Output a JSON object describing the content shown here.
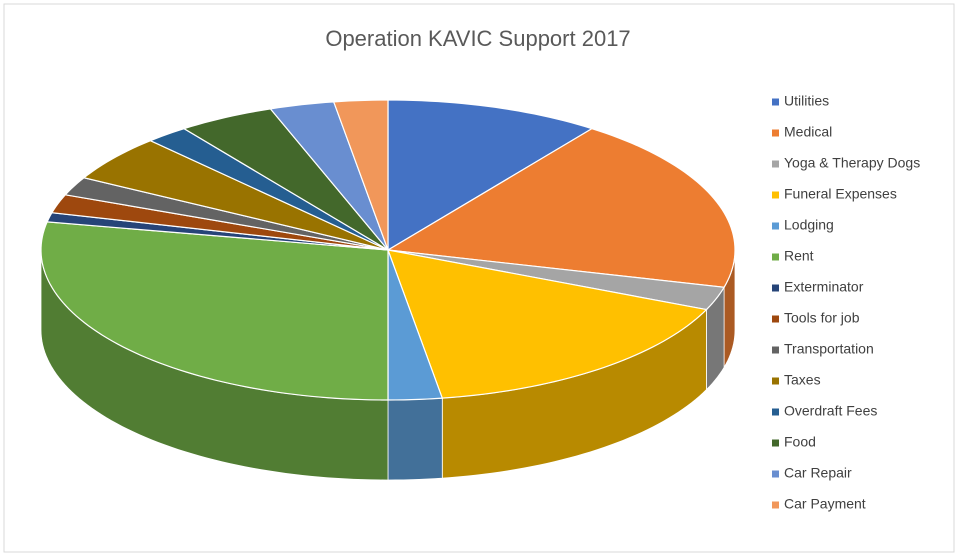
{
  "chart_data": {
    "type": "pie3d",
    "title": "Operation KAVIC Support 2017",
    "categories": [
      "Utilities",
      "Medical",
      "Yoga & Therapy Dogs",
      "Funeral Expenses",
      "Lodging",
      "Rent",
      "Exterminator",
      "Tools for job",
      "Transportation",
      "Taxes",
      "Overdraft Fees",
      "Food",
      "Car Repair",
      "Car Payment"
    ],
    "values": [
      10,
      19,
      2.5,
      16,
      2.5,
      28,
      1,
      2,
      2,
      5,
      2,
      4.5,
      3,
      2.5
    ],
    "colors": [
      "#4472c4",
      "#ed7d31",
      "#a5a5a5",
      "#ffc000",
      "#5b9bd5",
      "#70ad47",
      "#264478",
      "#9e480e",
      "#636363",
      "#997300",
      "#255e91",
      "#43682b",
      "#698ed0",
      "#f1975a"
    ],
    "legend": "right"
  }
}
